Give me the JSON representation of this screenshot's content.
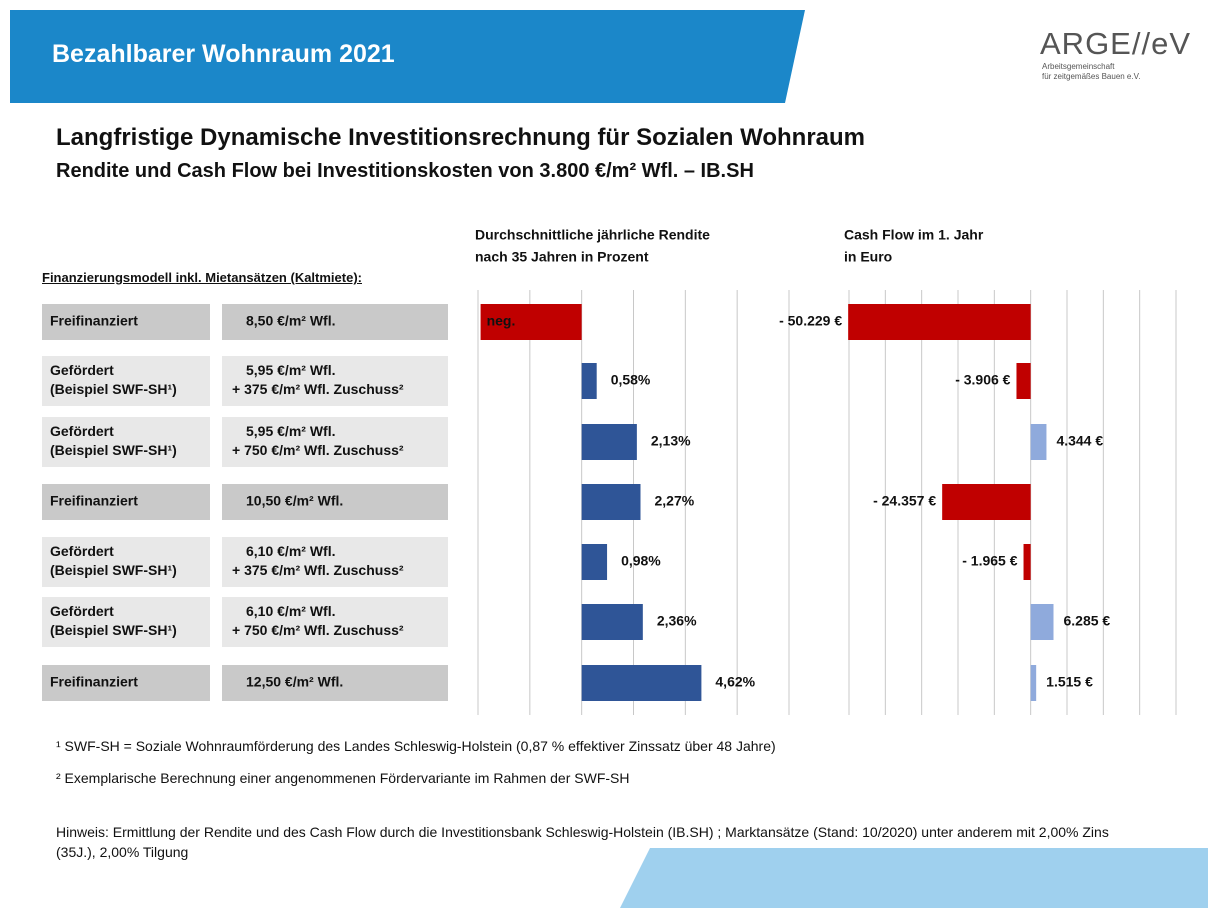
{
  "header": {
    "title": "Bezahlbarer Wohnraum 2021",
    "logo": "ARGE//eV",
    "logo_lines": [
      "Arbeitsgemeinschaft",
      "für zeitgemäßes Bauen e.V."
    ]
  },
  "title": "Langfristige Dynamische Investitionsrechnung für Sozialen Wohnraum",
  "subtitle": "Rendite und Cash Flow bei Investitionskosten von 3.800 €/m² Wfl. – IB.SH",
  "table": {
    "heading": "Finanzierungsmodell inkl. Mietansätzen (Kaltmiete):",
    "rows": [
      {
        "model": [
          "Freifinanziert"
        ],
        "rent": [
          "8,50 €/m² Wfl."
        ],
        "color": "#c9c9c9"
      },
      {
        "model": [
          "Gefördert",
          "(Beispiel SWF-SH¹)"
        ],
        "rent": [
          "5,95 €/m² Wfl.",
          "+ 375 €/m² Wfl. Zuschuss²"
        ],
        "color": "#e8e8e8"
      },
      {
        "model": [
          "Gefördert",
          "(Beispiel SWF-SH¹)"
        ],
        "rent": [
          "5,95 €/m² Wfl.",
          "+ 750 €/m² Wfl. Zuschuss²"
        ],
        "color": "#e8e8e8"
      },
      {
        "model": [
          "Freifinanziert"
        ],
        "rent": [
          "10,50 €/m² Wfl."
        ],
        "color": "#c9c9c9"
      },
      {
        "model": [
          "Gefördert",
          "(Beispiel SWF-SH¹)"
        ],
        "rent": [
          "6,10 €/m² Wfl.",
          "+ 375 €/m² Wfl. Zuschuss²"
        ],
        "color": "#e8e8e8"
      },
      {
        "model": [
          "Gefördert",
          "(Beispiel SWF-SH¹)"
        ],
        "rent": [
          "6,10 €/m² Wfl.",
          "+ 750 €/m² Wfl. Zuschuss²"
        ],
        "color": "#e8e8e8"
      },
      {
        "model": [
          "Freifinanziert"
        ],
        "rent": [
          "12,50 €/m² Wfl."
        ],
        "color": "#c9c9c9"
      }
    ]
  },
  "chart_data": [
    {
      "type": "hbar",
      "title": [
        "Durchschnittliche jährliche Rendite",
        "nach 35 Jahren in Prozent"
      ],
      "values": [
        -3.9,
        0.58,
        2.13,
        2.27,
        0.98,
        2.36,
        4.62
      ],
      "value_labels": [
        "neg.",
        "0,58%",
        "2,13%",
        "2,27%",
        "0,98%",
        "2,36%",
        "4,62%"
      ],
      "colors": [
        "#c00000",
        "#2f5597",
        "#2f5597",
        "#2f5597",
        "#2f5597",
        "#2f5597",
        "#2f5597"
      ],
      "xlim": [
        -4,
        8
      ],
      "xticks": [
        -4,
        -2,
        0,
        2,
        4,
        6,
        8
      ],
      "grid": true
    },
    {
      "type": "hbar",
      "title": [
        "Cash Flow im 1. Jahr",
        "in Euro"
      ],
      "values": [
        -50229,
        -3906,
        4344,
        -24357,
        -1965,
        6285,
        1515
      ],
      "value_labels": [
        "- 50.229 €",
        "- 3.906 €",
        "4.344 €",
        "- 24.357 €",
        "- 1.965 €",
        "6.285 €",
        "1.515 €"
      ],
      "colors": [
        "#c00000",
        "#c00000",
        "#8faadc",
        "#c00000",
        "#c00000",
        "#8faadc",
        "#8faadc"
      ],
      "xlim": [
        -50000,
        40000
      ],
      "xticks": [
        -50000,
        -40000,
        -30000,
        -20000,
        -10000,
        0,
        10000,
        20000,
        30000,
        40000
      ],
      "grid": true
    }
  ],
  "footnotes": [
    "¹ SWF-SH = Soziale Wohnraumförderung des Landes Schleswig-Holstein (0,87 % effektiver Zinssatz über 48 Jahre)",
    "² Exemplarische Berechnung einer angenommenen Fördervariante im Rahmen der SWF-SH"
  ],
  "note": "Hinweis: Ermittlung der Rendite und des Cash Flow durch die Investitionsbank Schleswig-Holstein (IB.SH) ; Marktansätze (Stand: 10/2020) unter anderem mit 2,00% Zins (35J.), 2,00% Tilgung"
}
